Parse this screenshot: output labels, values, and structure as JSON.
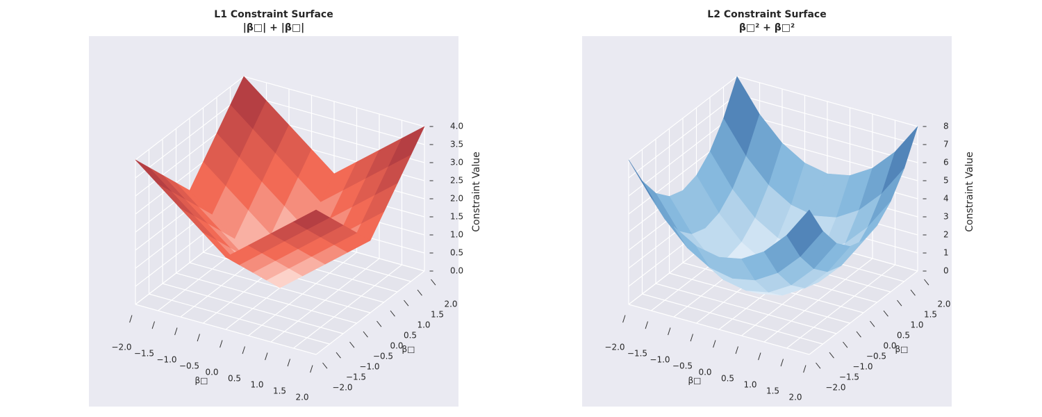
{
  "chart_data": [
    {
      "type": "surface3d",
      "title": "L1 Constraint Surface",
      "subtitle": "|β□| + |β□|",
      "xlabel": "β□",
      "ylabel": "β□",
      "zlabel": "Constraint Value",
      "x": [
        -2,
        -1.5,
        -1,
        -0.5,
        0,
        0.5,
        1,
        1.5,
        2
      ],
      "y": [
        -2,
        -1.5,
        -1,
        -0.5,
        0,
        0.5,
        1,
        1.5,
        2
      ],
      "z": [
        [
          4,
          3.5,
          3,
          2.5,
          2,
          2.5,
          3,
          3.5,
          4
        ],
        [
          3.5,
          3,
          2.5,
          2,
          1.5,
          2,
          2.5,
          3,
          3.5
        ],
        [
          3,
          2.5,
          2,
          1.5,
          1,
          1.5,
          2,
          2.5,
          3
        ],
        [
          2.5,
          2,
          1.5,
          1,
          0.5,
          1,
          1.5,
          2,
          2.5
        ],
        [
          2,
          1.5,
          1,
          0.5,
          0,
          0.5,
          1,
          1.5,
          2
        ],
        [
          2.5,
          2,
          1.5,
          1,
          0.5,
          1,
          1.5,
          2,
          2.5
        ],
        [
          3,
          2.5,
          2,
          1.5,
          1,
          1.5,
          2,
          2.5,
          3
        ],
        [
          3.5,
          3,
          2.5,
          2,
          1.5,
          2,
          2.5,
          3,
          3.5
        ],
        [
          4,
          3.5,
          3,
          2.5,
          2,
          2.5,
          3,
          3.5,
          4
        ]
      ],
      "xlim": [
        -2,
        2
      ],
      "ylim": [
        -2,
        2
      ],
      "zlim": [
        0,
        4
      ],
      "xticks": [
        {
          "value": -2,
          "label": "−2.0"
        },
        {
          "value": -1.5,
          "label": "−1.5"
        },
        {
          "value": -1,
          "label": "−1.0"
        },
        {
          "value": -0.5,
          "label": "−0.5"
        },
        {
          "value": 0,
          "label": "0.0"
        },
        0.5,
        {
          "value": 1,
          "label": "1.0"
        },
        1.5,
        {
          "value": 2,
          "label": "2.0"
        }
      ],
      "yticks": [
        {
          "value": -2,
          "label": "−2.0"
        },
        {
          "value": -1.5,
          "label": "−1.5"
        },
        {
          "value": -1,
          "label": "−1.0"
        },
        {
          "value": -0.5,
          "label": "−0.5"
        },
        {
          "value": 0,
          "label": "0.0"
        },
        0.5,
        {
          "value": 1,
          "label": "1.0"
        },
        1.5,
        {
          "value": 2,
          "label": "2.0"
        }
      ],
      "zticks": [
        {
          "value": 0,
          "label": "0.0"
        },
        0.5,
        {
          "value": 1,
          "label": "1.0"
        },
        1.5,
        {
          "value": 2,
          "label": "2.0"
        },
        2.5,
        {
          "value": 3,
          "label": "3.0"
        },
        3.5,
        {
          "value": 4,
          "label": "4.0"
        }
      ],
      "colormap": [
        "#fff5f0",
        "#f26a55",
        "#a0303d"
      ],
      "grid": true
    },
    {
      "type": "surface3d",
      "title": "L2 Constraint Surface",
      "subtitle": "β□² + β□²",
      "xlabel": "β□",
      "ylabel": "β□",
      "zlabel": "Constraint Value",
      "x": [
        -2,
        -1.5,
        -1,
        -0.5,
        0,
        0.5,
        1,
        1.5,
        2
      ],
      "y": [
        -2,
        -1.5,
        -1,
        -0.5,
        0,
        0.5,
        1,
        1.5,
        2
      ],
      "z": [
        [
          8,
          6.25,
          5,
          4.25,
          4,
          4.25,
          5,
          6.25,
          8
        ],
        [
          6.25,
          4.5,
          3.25,
          2.5,
          2.25,
          2.5,
          3.25,
          4.5,
          6.25
        ],
        [
          5,
          3.25,
          2,
          1.25,
          1,
          1.25,
          2,
          3.25,
          5
        ],
        [
          4.25,
          2.5,
          1.25,
          0.5,
          0.25,
          0.5,
          1.25,
          2.5,
          4.25
        ],
        [
          4,
          2.25,
          1,
          0.25,
          0,
          0.25,
          1,
          2.25,
          4
        ],
        [
          4.25,
          2.5,
          1.25,
          0.5,
          0.25,
          0.5,
          1.25,
          2.5,
          4.25
        ],
        [
          5,
          3.25,
          2,
          1.25,
          1,
          1.25,
          2,
          3.25,
          5
        ],
        [
          6.25,
          4.5,
          3.25,
          2.5,
          2.25,
          2.5,
          3.25,
          4.5,
          6.25
        ],
        [
          8,
          6.25,
          5,
          4.25,
          4,
          4.25,
          5,
          6.25,
          8
        ]
      ],
      "xlim": [
        -2,
        2
      ],
      "ylim": [
        -2,
        2
      ],
      "zlim": [
        0,
        8
      ],
      "xticks": [
        {
          "value": -2,
          "label": "−2.0"
        },
        {
          "value": -1.5,
          "label": "−1.5"
        },
        {
          "value": -1,
          "label": "−1.0"
        },
        {
          "value": -0.5,
          "label": "−0.5"
        },
        {
          "value": 0,
          "label": "0.0"
        },
        0.5,
        {
          "value": 1,
          "label": "1.0"
        },
        1.5,
        {
          "value": 2,
          "label": "2.0"
        }
      ],
      "yticks": [
        {
          "value": -2,
          "label": "−2.0"
        },
        {
          "value": -1.5,
          "label": "−1.5"
        },
        {
          "value": -1,
          "label": "−1.0"
        },
        {
          "value": -0.5,
          "label": "−0.5"
        },
        {
          "value": 0,
          "label": "0.0"
        },
        0.5,
        {
          "value": 1,
          "label": "1.0"
        },
        1.5,
        {
          "value": 2,
          "label": "2.0"
        }
      ],
      "zticks": [
        0,
        1,
        2,
        3,
        4,
        5,
        6,
        7,
        8
      ],
      "colormap": [
        "#f3f8fd",
        "#7fb5dc",
        "#2f5f9e"
      ],
      "grid": true
    }
  ]
}
